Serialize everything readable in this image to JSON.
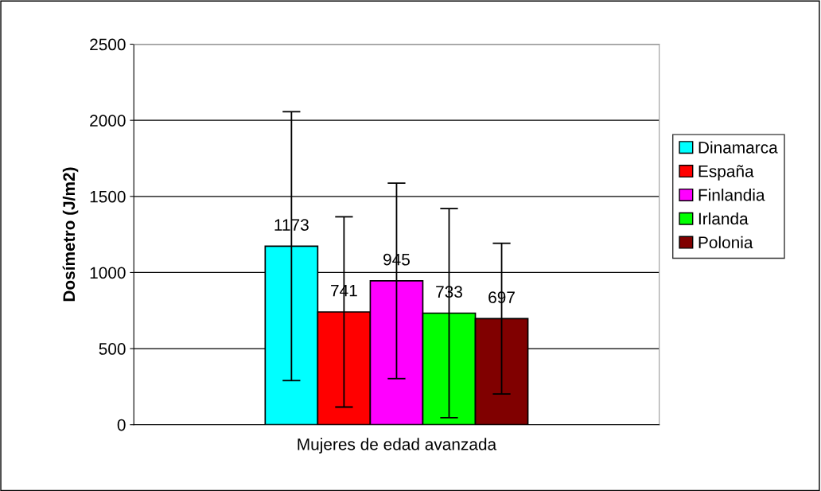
{
  "chart_data": {
    "type": "bar",
    "ylabel": "Dosímetro (J/m2)",
    "categories": [
      "Mujeres de edad avanzada"
    ],
    "series": [
      {
        "name": "Dinamarca",
        "color": "#00ffff",
        "values": [
          1173
        ],
        "errors": [
          883
        ]
      },
      {
        "name": "España",
        "color": "#ff0000",
        "values": [
          741
        ],
        "errors": [
          625
        ]
      },
      {
        "name": "Finlandia",
        "color": "#ff00ff",
        "values": [
          945
        ],
        "errors": [
          642
        ]
      },
      {
        "name": "Irlanda",
        "color": "#00ff00",
        "values": [
          733
        ],
        "errors": [
          687
        ]
      },
      {
        "name": "Polonia",
        "color": "#800000",
        "values": [
          697
        ],
        "errors": [
          495
        ]
      }
    ],
    "ylim": [
      0,
      2500
    ],
    "yticks": [
      0,
      500,
      1000,
      1500,
      2000,
      2500
    ],
    "grid": "y",
    "legend": "right",
    "data_labels": true
  }
}
